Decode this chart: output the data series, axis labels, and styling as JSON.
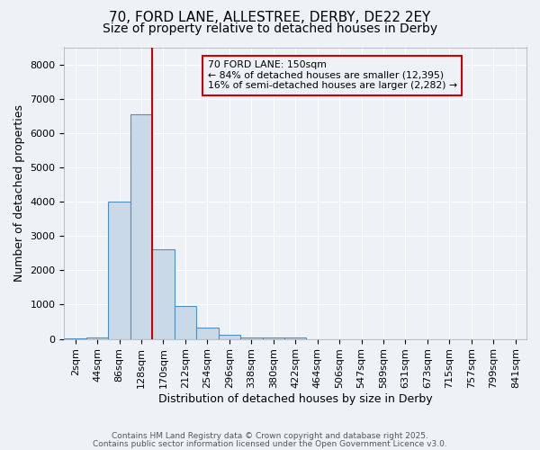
{
  "title1": "70, FORD LANE, ALLESTREE, DERBY, DE22 2EY",
  "title2": "Size of property relative to detached houses in Derby",
  "xlabel": "Distribution of detached houses by size in Derby",
  "ylabel": "Number of detached properties",
  "footnote1": "Contains HM Land Registry data © Crown copyright and database right 2025.",
  "footnote2": "Contains public sector information licensed under the Open Government Licence v3.0.",
  "bin_labels": [
    "2sqm",
    "44sqm",
    "86sqm",
    "128sqm",
    "170sqm",
    "212sqm",
    "254sqm",
    "296sqm",
    "338sqm",
    "380sqm",
    "422sqm",
    "464sqm",
    "506sqm",
    "547sqm",
    "589sqm",
    "631sqm",
    "673sqm",
    "715sqm",
    "757sqm",
    "799sqm",
    "841sqm"
  ],
  "bar_heights": [
    5,
    30,
    4000,
    6550,
    2600,
    950,
    320,
    115,
    50,
    30,
    50,
    0,
    0,
    0,
    0,
    0,
    0,
    0,
    0,
    0,
    0
  ],
  "bar_color": "#c9d9e8",
  "bar_edge_color": "#4f8fbf",
  "vline_color": "#cc0000",
  "annotation_text": "70 FORD LANE: 150sqm\n← 84% of detached houses are smaller (12,395)\n16% of semi-detached houses are larger (2,282) →",
  "ylim": [
    0,
    8500
  ],
  "yticks": [
    0,
    1000,
    2000,
    3000,
    4000,
    5000,
    6000,
    7000,
    8000
  ],
  "background_color": "#eef2f7",
  "grid_color": "#ffffff",
  "title_fontsize": 11,
  "subtitle_fontsize": 10,
  "axis_label_fontsize": 9,
  "tick_fontsize": 8
}
